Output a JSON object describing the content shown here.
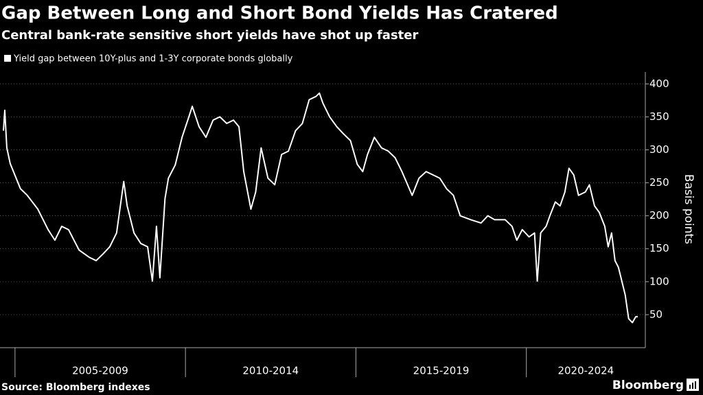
{
  "chart_data": {
    "type": "line",
    "title": "Gap Between Long and Short Bond Yields Has Cratered",
    "subtitle": "Central bank-rate sensitive short yields have shot up faster",
    "y_label": "Basis points",
    "source": "Source: Bloomberg indexes",
    "brand": "Bloomberg",
    "x": [
      2004.66,
      2004.7,
      2004.76,
      2004.86,
      2005.16,
      2005.36,
      2005.67,
      2005.97,
      2006.17,
      2006.37,
      2006.57,
      2006.88,
      2007.18,
      2007.38,
      2007.58,
      2007.78,
      2007.98,
      2008.19,
      2008.29,
      2008.49,
      2008.69,
      2008.89,
      2009.03,
      2009.15,
      2009.25,
      2009.4,
      2009.5,
      2009.7,
      2009.9,
      2010.1,
      2010.2,
      2010.4,
      2010.6,
      2010.81,
      2011.01,
      2011.21,
      2011.41,
      2011.57,
      2011.71,
      2011.92,
      2012.06,
      2012.22,
      2012.42,
      2012.62,
      2012.82,
      2013.02,
      2013.23,
      2013.43,
      2013.63,
      2013.83,
      2013.93,
      2014.03,
      2014.23,
      2014.44,
      2014.64,
      2014.84,
      2015.04,
      2015.2,
      2015.34,
      2015.54,
      2015.75,
      2015.95,
      2016.15,
      2016.35,
      2016.65,
      2016.85,
      2017.06,
      2017.26,
      2017.46,
      2017.66,
      2017.86,
      2018.06,
      2018.37,
      2018.67,
      2018.87,
      2019.07,
      2019.38,
      2019.58,
      2019.72,
      2019.88,
      2020.08,
      2020.24,
      2020.32,
      2020.42,
      2020.58,
      2020.69,
      2020.85,
      2020.99,
      2021.13,
      2021.25,
      2021.39,
      2021.53,
      2021.73,
      2021.85,
      2022.0,
      2022.14,
      2022.3,
      2022.4,
      2022.5,
      2022.6,
      2022.7,
      2022.8,
      2022.9,
      2023.0,
      2023.11,
      2023.21,
      2023.27
    ],
    "series": [
      {
        "name": "Yield gap between 10Y-plus and 1-3Y corporate bonds globally",
        "color": "#ffffff",
        "values": [
          329,
          360,
          303,
          279,
          241,
          231,
          210,
          179,
          163,
          184,
          179,
          148,
          137,
          132,
          142,
          153,
          174,
          252,
          215,
          174,
          158,
          153,
          101,
          184,
          106,
          226,
          257,
          277,
          319,
          350,
          366,
          335,
          319,
          345,
          350,
          340,
          345,
          335,
          267,
          210,
          236,
          303,
          257,
          247,
          293,
          298,
          329,
          340,
          376,
          381,
          386,
          371,
          350,
          335,
          324,
          314,
          278,
          267,
          293,
          319,
          303,
          298,
          288,
          267,
          231,
          257,
          267,
          262,
          257,
          241,
          231,
          200,
          194,
          189,
          200,
          194,
          194,
          184,
          163,
          179,
          168,
          174,
          101,
          174,
          184,
          200,
          221,
          215,
          236,
          272,
          262,
          231,
          236,
          247,
          215,
          205,
          184,
          153,
          174,
          132,
          122,
          101,
          80,
          44,
          38,
          47,
          47
        ]
      }
    ],
    "xlim": [
      2004.56,
      2023.49
    ],
    "xticks": [
      {
        "value": 2005,
        "label": "2005-2009"
      },
      {
        "value": 2010,
        "label": "2010-2014"
      },
      {
        "value": 2015,
        "label": "2015-2019"
      },
      {
        "value": 2020,
        "label": "2020-2024"
      }
    ],
    "ylim": [
      0,
      418
    ],
    "yticks": [
      50,
      100,
      150,
      200,
      250,
      300,
      350,
      400
    ],
    "grid": true
  }
}
